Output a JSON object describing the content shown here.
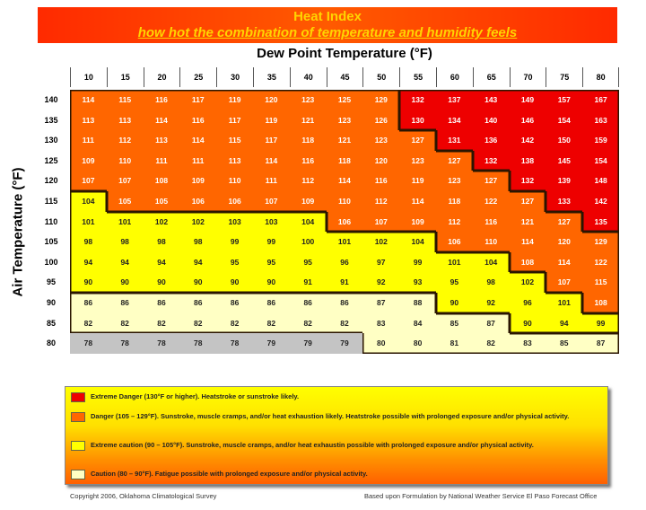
{
  "title": "Heat Index",
  "subtitle": "how hot the combination of temperature and humidity feels",
  "footer": {
    "left": "Copyright 2006, Oklahoma Climatological Survey",
    "right": "Based upon Formulation by National Weather Service El Paso Forecast Office"
  },
  "chart_data": {
    "type": "table",
    "xlabel": "Dew Point Temperature (°F)",
    "ylabel": "Air Temperature (°F)",
    "columns": [
      "10",
      "15",
      "20",
      "25",
      "30",
      "35",
      "40",
      "45",
      "50",
      "55",
      "60",
      "65",
      "70",
      "75",
      "80"
    ],
    "rows": [
      {
        "label": "140",
        "values": [
          114,
          115,
          116,
          117,
          119,
          120,
          123,
          125,
          129,
          132,
          137,
          143,
          149,
          157,
          167
        ]
      },
      {
        "label": "135",
        "values": [
          113,
          113,
          114,
          116,
          117,
          119,
          121,
          123,
          126,
          130,
          134,
          140,
          146,
          154,
          163
        ]
      },
      {
        "label": "130",
        "values": [
          111,
          112,
          113,
          114,
          115,
          117,
          118,
          121,
          123,
          127,
          131,
          136,
          142,
          150,
          159
        ]
      },
      {
        "label": "125",
        "values": [
          109,
          110,
          111,
          111,
          113,
          114,
          116,
          118,
          120,
          123,
          127,
          132,
          138,
          145,
          154
        ]
      },
      {
        "label": "120",
        "values": [
          107,
          107,
          108,
          109,
          110,
          111,
          112,
          114,
          116,
          119,
          123,
          127,
          132,
          139,
          148
        ]
      },
      {
        "label": "115",
        "values": [
          104,
          105,
          105,
          106,
          106,
          107,
          109,
          110,
          112,
          114,
          118,
          122,
          127,
          133,
          142
        ]
      },
      {
        "label": "110",
        "values": [
          101,
          101,
          102,
          102,
          103,
          103,
          104,
          106,
          107,
          109,
          112,
          116,
          121,
          127,
          135
        ]
      },
      {
        "label": "105",
        "values": [
          98,
          98,
          98,
          98,
          99,
          99,
          100,
          101,
          102,
          104,
          106,
          110,
          114,
          120,
          129
        ]
      },
      {
        "label": "100",
        "values": [
          94,
          94,
          94,
          94,
          95,
          95,
          95,
          96,
          97,
          99,
          101,
          104,
          108,
          114,
          122
        ]
      },
      {
        "label": "95",
        "values": [
          90,
          90,
          90,
          90,
          90,
          90,
          91,
          91,
          92,
          93,
          95,
          98,
          102,
          107,
          115
        ]
      },
      {
        "label": "90",
        "values": [
          86,
          86,
          86,
          86,
          86,
          86,
          86,
          86,
          87,
          88,
          90,
          92,
          96,
          101,
          108
        ]
      },
      {
        "label": "85",
        "values": [
          82,
          82,
          82,
          82,
          82,
          82,
          82,
          82,
          83,
          84,
          85,
          87,
          90,
          94,
          99
        ]
      },
      {
        "label": "80",
        "values": [
          78,
          78,
          78,
          78,
          78,
          79,
          79,
          79,
          80,
          80,
          81,
          82,
          83,
          85,
          87
        ]
      }
    ],
    "categories": [
      {
        "min": 130,
        "color": "#ee0000",
        "text_color": "#ffffff",
        "label": "Extreme Danger (130°F or higher).  Heatstroke or sunstroke likely."
      },
      {
        "min": 105,
        "color": "#ff6600",
        "text_color": "#ffffff",
        "label": "Danger (105 – 129°F).  Sunstroke, muscle cramps, and/or heat exhaustion likely.  Heatstroke possible with prolonged exposure and/or physical activity."
      },
      {
        "min": 90,
        "color": "#ffff00",
        "text_color": "#222222",
        "label": "Extreme caution (90 – 105°F).  Sunstroke, muscle cramps, and/or heat exhaustin possible with prolonged exposure and/or physical activity."
      },
      {
        "min": 80,
        "color": "#ffffc4",
        "text_color": "#222222",
        "label": "Caution (80 – 90°F).  Fatigue possible with prolonged exposure and/or physical activity."
      },
      {
        "min": 0,
        "color": "#c4c4c4",
        "text_color": "#222222"
      }
    ]
  }
}
